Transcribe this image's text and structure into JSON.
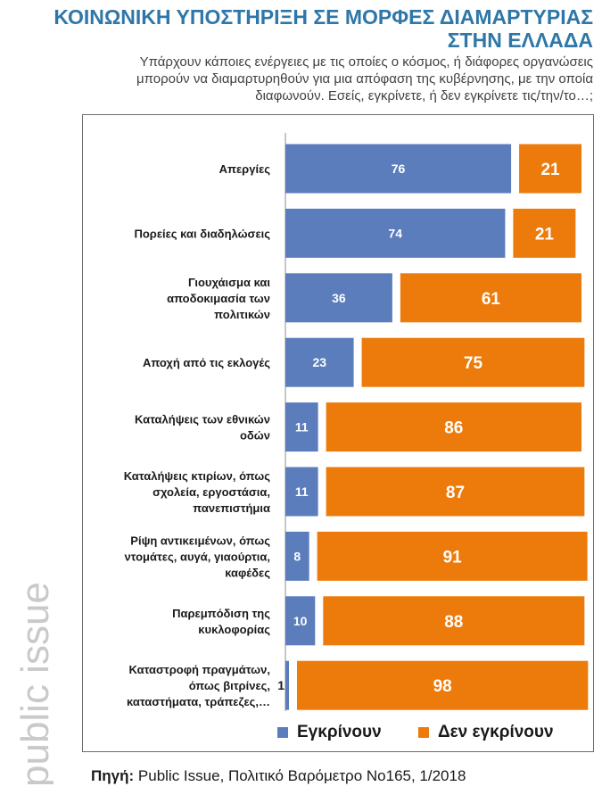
{
  "title_line1": "ΚΟΙΝΩΝΙΚΗ ΥΠΟΣΤΗΡΙΞΗ ΣΕ ΜΟΡΦΕΣ ΔΙΑΜΑΡΤΥΡΙΑΣ",
  "title_line2": "ΣΤΗΝ ΕΛΛΑΔΑ",
  "subtitle_line1": "Υπάρχουν κάποιες ενέργειες με τις οποίες ο κόσμος, ή διάφορες οργανώσεις",
  "subtitle_line2": "μπορούν να διαμαρτυρηθούν για μια απόφαση της κυβέρνησης, με την οποία",
  "subtitle_line3": "διαφωνούν. Εσείς, εγκρίνετε, ή δεν εγκρίνετε τις/την/το…;",
  "watermark": "public issue",
  "source_label": "Πηγή:",
  "source_text": "Public Issue,  Πολιτικό Βαρόμετρο Νο165, 1/2018",
  "colors": {
    "approve": "#5b7dbc",
    "disapprove": "#ec7b0c",
    "title": "#2e77a8"
  },
  "chart_data": {
    "type": "bar",
    "orientation": "horizontal",
    "stacked": true,
    "title": "ΚΟΙΝΩΝΙΚΗ ΥΠΟΣΤΗΡΙΞΗ ΣΕ ΜΟΡΦΕΣ ΔΙΑΜΑΡΤΥΡΙΑΣ ΣΤΗΝ ΕΛΛΑΔΑ",
    "categories": [
      [
        "Απεργίες"
      ],
      [
        "Πορείες και διαδηλώσεις"
      ],
      [
        "Γιουχάισμα και",
        "αποδοκιμασία των",
        "πολιτικών"
      ],
      [
        "Αποχή από τις εκλογές"
      ],
      [
        "Καταλήψεις των εθνικών",
        "οδών"
      ],
      [
        "Καταλήψεις κτιρίων, όπως",
        "σχολεία, εργοστάσια,",
        "πανεπιστήμια"
      ],
      [
        "Ρίψη αντικειμένων, όπως",
        "ντομάτες, αυγά, γιαούρτια,",
        "καφέδες"
      ],
      [
        "Παρεμπόδιση της",
        "κυκλοφορίας"
      ],
      [
        "Καταστροφή πραγμάτων,",
        "όπως βιτρίνες,",
        "καταστήματα, τράπεζες,…"
      ]
    ],
    "series": [
      {
        "name": "Εγκρίνουν",
        "values": [
          76,
          74,
          36,
          23,
          11,
          11,
          8,
          10,
          1
        ]
      },
      {
        "name": "Δεν εγκρίνουν",
        "values": [
          21,
          21,
          61,
          75,
          86,
          87,
          91,
          88,
          98
        ]
      }
    ],
    "legend": "bottom",
    "grid": false
  }
}
